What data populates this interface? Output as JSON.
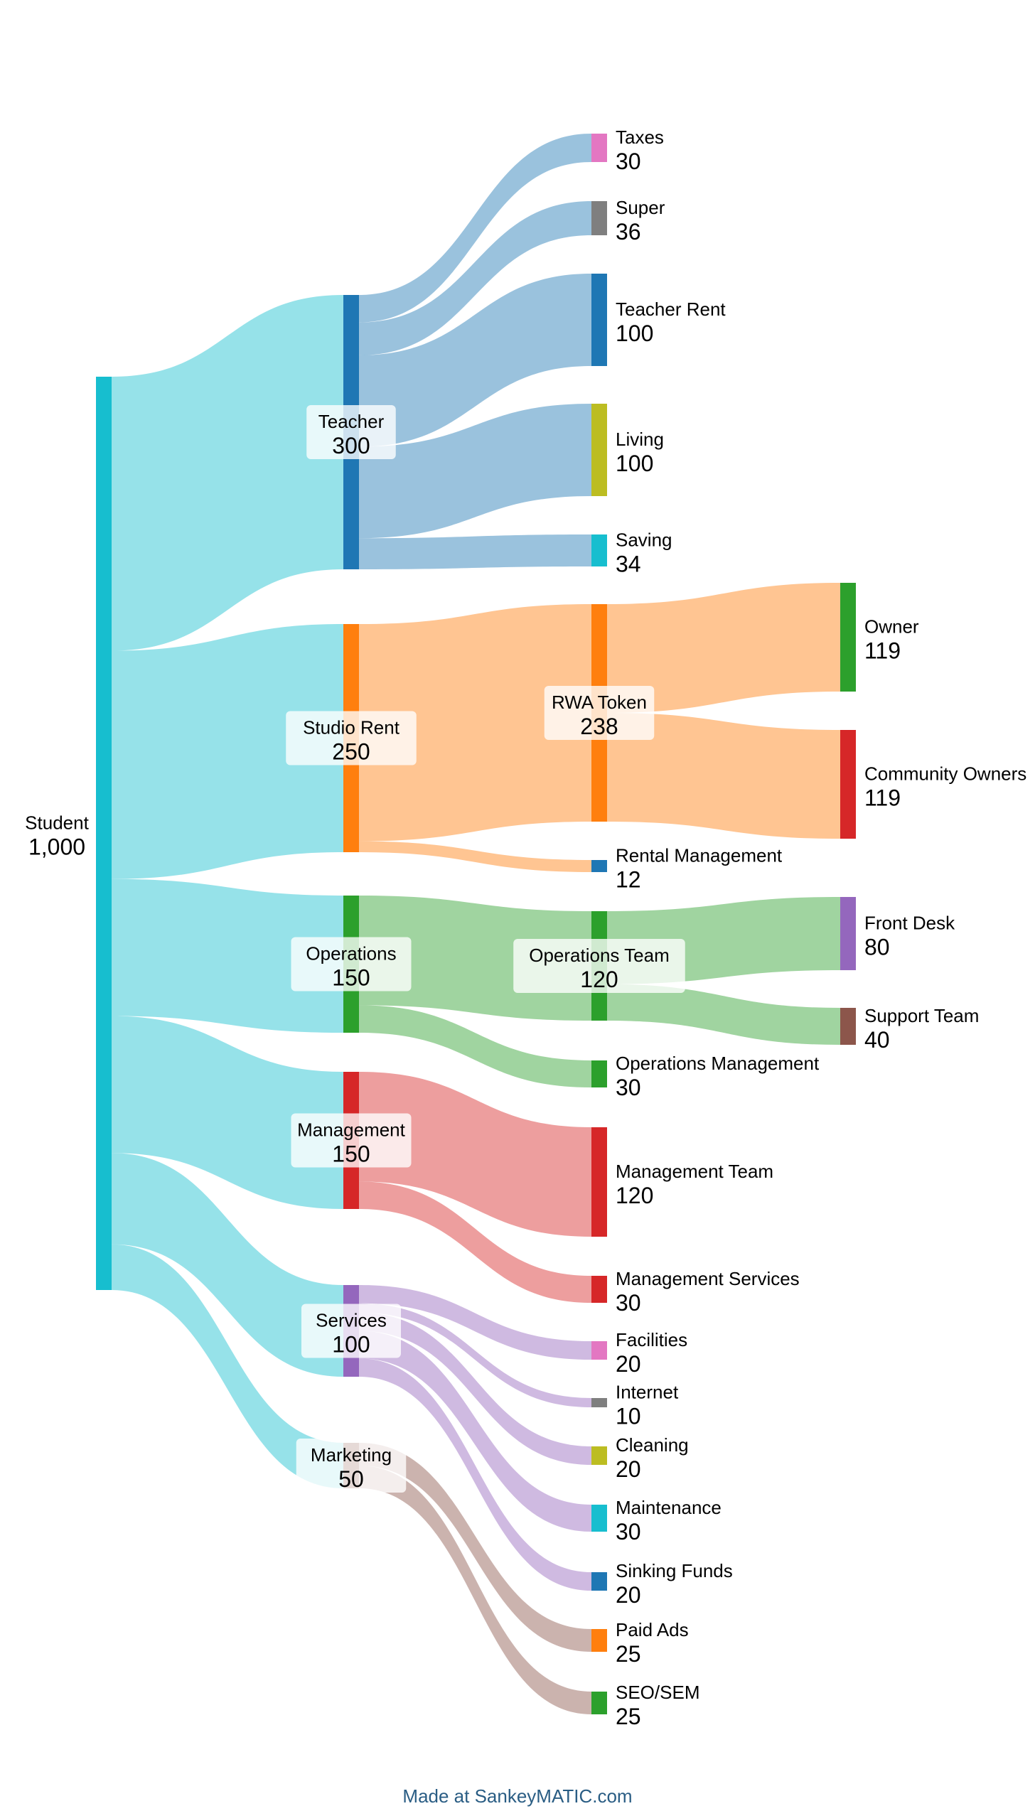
{
  "chart_data": {
    "type": "sankey",
    "nodes": [
      {
        "id": "student",
        "label": "Student",
        "value": "1,000",
        "color": "#17becf"
      },
      {
        "id": "teacher",
        "label": "Teacher",
        "value": "300",
        "color": "#1f77b4"
      },
      {
        "id": "studio_rent",
        "label": "Studio Rent",
        "value": "250",
        "color": "#ff7f0e"
      },
      {
        "id": "operations",
        "label": "Operations",
        "value": "150",
        "color": "#2ca02c"
      },
      {
        "id": "management",
        "label": "Management",
        "value": "150",
        "color": "#d62728"
      },
      {
        "id": "services",
        "label": "Services",
        "value": "100",
        "color": "#9467bd"
      },
      {
        "id": "marketing",
        "label": "Marketing",
        "value": "50",
        "color": "#8c564b"
      },
      {
        "id": "taxes",
        "label": "Taxes",
        "value": "30",
        "color": "#e377c2"
      },
      {
        "id": "super",
        "label": "Super",
        "value": "36",
        "color": "#7f7f7f"
      },
      {
        "id": "teacher_rent",
        "label": "Teacher Rent",
        "value": "100",
        "color": "#1f77b4"
      },
      {
        "id": "living",
        "label": "Living",
        "value": "100",
        "color": "#bcbd22"
      },
      {
        "id": "saving",
        "label": "Saving",
        "value": "34",
        "color": "#17becf"
      },
      {
        "id": "rwa_token",
        "label": "RWA Token",
        "value": "238",
        "color": "#ff7f0e"
      },
      {
        "id": "rental_management",
        "label": "Rental Management",
        "value": "12",
        "color": "#1f77b4"
      },
      {
        "id": "operations_team",
        "label": "Operations Team",
        "value": "120",
        "color": "#2ca02c"
      },
      {
        "id": "operations_management",
        "label": "Operations Management",
        "value": "30",
        "color": "#2ca02c"
      },
      {
        "id": "management_team",
        "label": "Management Team",
        "value": "120",
        "color": "#d62728"
      },
      {
        "id": "management_services",
        "label": "Management Services",
        "value": "30",
        "color": "#d62728"
      },
      {
        "id": "facilities",
        "label": "Facilities",
        "value": "20",
        "color": "#e377c2"
      },
      {
        "id": "internet",
        "label": "Internet",
        "value": "10",
        "color": "#7f7f7f"
      },
      {
        "id": "cleaning",
        "label": "Cleaning",
        "value": "20",
        "color": "#bcbd22"
      },
      {
        "id": "maintenance",
        "label": "Maintenance",
        "value": "30",
        "color": "#17becf"
      },
      {
        "id": "sinking_funds",
        "label": "Sinking Funds",
        "value": "20",
        "color": "#1f77b4"
      },
      {
        "id": "paid_ads",
        "label": "Paid Ads",
        "value": "25",
        "color": "#ff7f0e"
      },
      {
        "id": "seo_sem",
        "label": "SEO/SEM",
        "value": "25",
        "color": "#2ca02c"
      },
      {
        "id": "owner",
        "label": "Owner",
        "value": "119",
        "color": "#2ca02c"
      },
      {
        "id": "community_owners",
        "label": "Community Owners",
        "value": "119",
        "color": "#d62728"
      },
      {
        "id": "front_desk",
        "label": "Front Desk",
        "value": "80",
        "color": "#9467bd"
      },
      {
        "id": "support_team",
        "label": "Support Team",
        "value": "40",
        "color": "#8c564b"
      }
    ],
    "links": [
      {
        "source": "student",
        "target": "teacher",
        "value": 300
      },
      {
        "source": "student",
        "target": "studio_rent",
        "value": 250
      },
      {
        "source": "student",
        "target": "operations",
        "value": 150
      },
      {
        "source": "student",
        "target": "management",
        "value": 150
      },
      {
        "source": "student",
        "target": "services",
        "value": 100
      },
      {
        "source": "student",
        "target": "marketing",
        "value": 50
      },
      {
        "source": "teacher",
        "target": "taxes",
        "value": 30
      },
      {
        "source": "teacher",
        "target": "super",
        "value": 36
      },
      {
        "source": "teacher",
        "target": "teacher_rent",
        "value": 100
      },
      {
        "source": "teacher",
        "target": "living",
        "value": 100
      },
      {
        "source": "teacher",
        "target": "saving",
        "value": 34
      },
      {
        "source": "studio_rent",
        "target": "rwa_token",
        "value": 238
      },
      {
        "source": "studio_rent",
        "target": "rental_management",
        "value": 12
      },
      {
        "source": "operations",
        "target": "operations_team",
        "value": 120
      },
      {
        "source": "operations",
        "target": "operations_management",
        "value": 30
      },
      {
        "source": "management",
        "target": "management_team",
        "value": 120
      },
      {
        "source": "management",
        "target": "management_services",
        "value": 30
      },
      {
        "source": "services",
        "target": "facilities",
        "value": 20
      },
      {
        "source": "services",
        "target": "internet",
        "value": 10
      },
      {
        "source": "services",
        "target": "cleaning",
        "value": 20
      },
      {
        "source": "services",
        "target": "maintenance",
        "value": 30
      },
      {
        "source": "services",
        "target": "sinking_funds",
        "value": 20
      },
      {
        "source": "marketing",
        "target": "paid_ads",
        "value": 25
      },
      {
        "source": "marketing",
        "target": "seo_sem",
        "value": 25
      },
      {
        "source": "rwa_token",
        "target": "owner",
        "value": 119
      },
      {
        "source": "rwa_token",
        "target": "community_owners",
        "value": 119
      },
      {
        "source": "operations_team",
        "target": "front_desk",
        "value": 80
      },
      {
        "source": "operations_team",
        "target": "support_team",
        "value": 40
      }
    ]
  },
  "footer": {
    "text": "Made at SankeyMATIC.com"
  }
}
